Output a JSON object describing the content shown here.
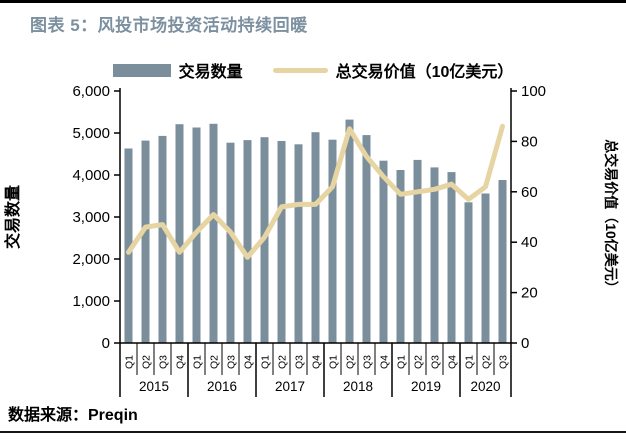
{
  "page": {
    "title": "图表 5：风投市场投资活动持续回暖",
    "source": "数据来源：Preqin"
  },
  "colors": {
    "title": "#7c90a0",
    "bar": "#7b8e9b",
    "line": "#e6d5a3",
    "axis": "#000000"
  },
  "chart_data": {
    "type": "bar",
    "subtype": "combo-bar-line-dual-axis",
    "title": "风投市场投资活动持续回暖",
    "grid": false,
    "legend_position": "top",
    "x_groups": [
      {
        "year": "2015",
        "quarters": [
          "Q1",
          "Q2",
          "Q3",
          "Q4"
        ]
      },
      {
        "year": "2016",
        "quarters": [
          "Q1",
          "Q2",
          "Q3",
          "Q4"
        ]
      },
      {
        "year": "2017",
        "quarters": [
          "Q1",
          "Q2",
          "Q3",
          "Q4"
        ]
      },
      {
        "year": "2018",
        "quarters": [
          "Q1",
          "Q2",
          "Q3",
          "Q4"
        ]
      },
      {
        "year": "2019",
        "quarters": [
          "Q1",
          "Q2",
          "Q3",
          "Q4"
        ]
      },
      {
        "year": "2020",
        "quarters": [
          "Q1",
          "Q2",
          "Q3"
        ]
      }
    ],
    "series": [
      {
        "name": "交易数量",
        "type": "bar",
        "axis": "left",
        "color": "#7b8e9b",
        "values": [
          4630,
          4820,
          4930,
          5210,
          5130,
          5220,
          4770,
          4830,
          4900,
          4810,
          4730,
          5020,
          4840,
          5320,
          4950,
          4340,
          4120,
          4360,
          4180,
          4070,
          3350,
          3560,
          3880
        ]
      },
      {
        "name": "总交易价值（10亿美元）",
        "type": "line",
        "axis": "right",
        "color": "#e6d5a3",
        "values": [
          36,
          46,
          47,
          36,
          44,
          51,
          44,
          34,
          42,
          54,
          55,
          55,
          62,
          85,
          74,
          66,
          59,
          60,
          61,
          63,
          57,
          62,
          86
        ]
      }
    ],
    "left_axis": {
      "label": "交易数量",
      "min": 0,
      "max": 6000,
      "ticks": [
        "0",
        "1,000",
        "2,000",
        "3,000",
        "4,000",
        "5,000",
        "6,000"
      ]
    },
    "right_axis": {
      "label": "总交易价值（10亿美元）",
      "min": 0,
      "max": 100,
      "ticks": [
        "0",
        "20",
        "40",
        "60",
        "80",
        "100"
      ]
    }
  }
}
